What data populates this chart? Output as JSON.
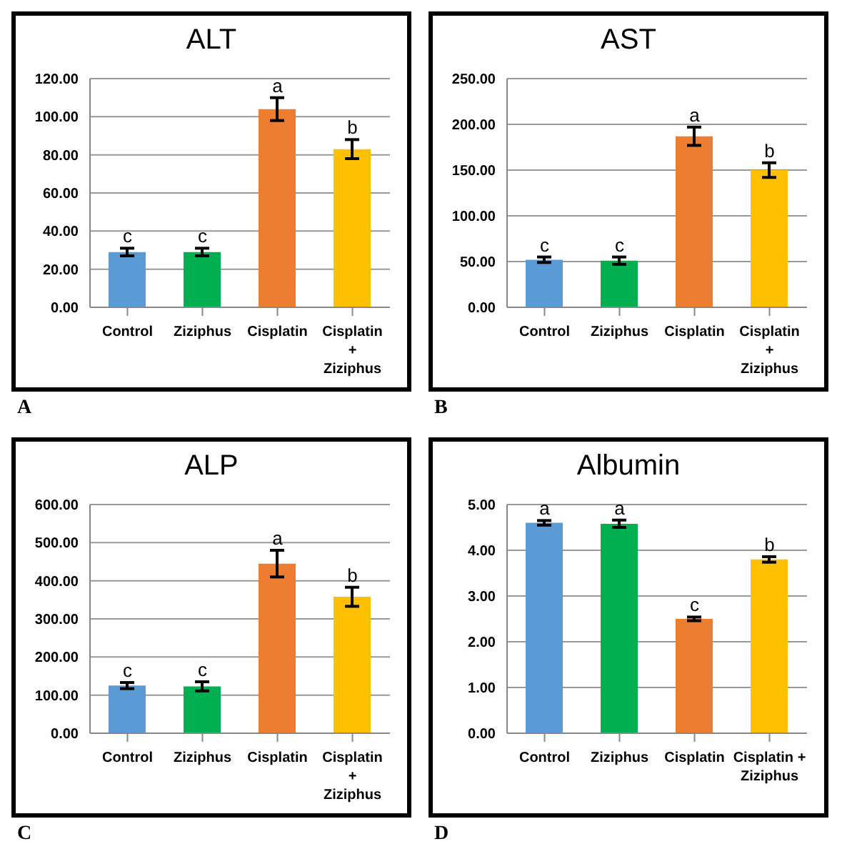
{
  "chart_data": [
    {
      "type": "bar",
      "title": "ALT",
      "categories": [
        "Control",
        "Ziziphus",
        "Cisplatin",
        "Cisplatin + Ziziphus"
      ],
      "values": [
        29,
        29,
        104,
        83
      ],
      "errors": [
        2,
        2,
        6,
        5
      ],
      "colors": [
        "#5b9bd5",
        "#00b050",
        "#ed7d31",
        "#ffc000"
      ],
      "ylim": [
        0,
        120
      ],
      "yticks": [
        {
          "value": 0,
          "label": "0.00"
        },
        {
          "value": 20,
          "label": "20.00"
        },
        {
          "value": 40,
          "label": "40.00"
        },
        {
          "value": 60,
          "label": "60.00"
        },
        {
          "value": 80,
          "label": "80.00"
        },
        {
          "value": 100,
          "label": "100.00"
        },
        {
          "value": 120,
          "label": "120.00"
        }
      ],
      "grid": "y",
      "annotations": [
        {
          "text": "c",
          "x": "Control",
          "y": 29
        },
        {
          "text": "c",
          "x": "Ziziphus",
          "y": 29
        },
        {
          "text": "a",
          "x": "Cisplatin",
          "y": 104
        },
        {
          "text": "b",
          "x": "Cisplatin + Ziziphus",
          "y": 83
        },
        "A"
      ]
    },
    {
      "type": "bar",
      "title": "AST",
      "categories": [
        "Control",
        "Ziziphus",
        "Cisplatin",
        "Cisplatin + Ziziphus"
      ],
      "values": [
        52,
        51,
        187,
        150
      ],
      "errors": [
        3,
        4,
        10,
        8
      ],
      "colors": [
        "#5b9bd5",
        "#00b050",
        "#ed7d31",
        "#ffc000"
      ],
      "ylim": [
        0,
        250
      ],
      "yticks": [
        {
          "value": 0,
          "label": "0.00"
        },
        {
          "value": 50,
          "label": "50.00"
        },
        {
          "value": 100,
          "label": "100.00"
        },
        {
          "value": 150,
          "label": "150.00"
        },
        {
          "value": 200,
          "label": "200.00"
        },
        {
          "value": 250,
          "label": "250.00"
        }
      ],
      "grid": "y",
      "annotations": [
        {
          "text": "c",
          "x": "Control",
          "y": 52
        },
        {
          "text": "c",
          "x": "Ziziphus",
          "y": 51
        },
        {
          "text": "a",
          "x": "Cisplatin",
          "y": 187
        },
        {
          "text": "b",
          "x": "Cisplatin + Ziziphus",
          "y": 150
        },
        "B"
      ]
    },
    {
      "type": "bar",
      "title": "ALP",
      "categories": [
        "Control",
        "Ziziphus",
        "Cisplatin",
        "Cisplatin + Ziziphus"
      ],
      "values": [
        125,
        123,
        445,
        358
      ],
      "errors": [
        8,
        12,
        35,
        25
      ],
      "colors": [
        "#5b9bd5",
        "#00b050",
        "#ed7d31",
        "#ffc000"
      ],
      "ylim": [
        0,
        600
      ],
      "yticks": [
        {
          "value": 0,
          "label": "0.00"
        },
        {
          "value": 100,
          "label": "100.00"
        },
        {
          "value": 200,
          "label": "200.00"
        },
        {
          "value": 300,
          "label": "300.00"
        },
        {
          "value": 400,
          "label": "400.00"
        },
        {
          "value": 500,
          "label": "500.00"
        },
        {
          "value": 600,
          "label": "600.00"
        }
      ],
      "grid": "y",
      "annotations": [
        {
          "text": "c",
          "x": "Control",
          "y": 125
        },
        {
          "text": "c",
          "x": "Ziziphus",
          "y": 123
        },
        {
          "text": "a",
          "x": "Cisplatin",
          "y": 445
        },
        {
          "text": "b",
          "x": "Cisplatin + Ziziphus",
          "y": 358
        },
        "C"
      ]
    },
    {
      "type": "bar",
      "title": "Albumin",
      "categories": [
        "Control",
        "Ziziphus",
        "Cisplatin",
        "Cisplatin + Ziziphus"
      ],
      "values": [
        4.6,
        4.58,
        2.5,
        3.8
      ],
      "errors": [
        0.05,
        0.08,
        0.04,
        0.06
      ],
      "colors": [
        "#5b9bd5",
        "#00b050",
        "#ed7d31",
        "#ffc000"
      ],
      "ylim": [
        0,
        5
      ],
      "yticks": [
        {
          "value": 0,
          "label": "0.00"
        },
        {
          "value": 1,
          "label": "1.00"
        },
        {
          "value": 2,
          "label": "2.00"
        },
        {
          "value": 3,
          "label": "3.00"
        },
        {
          "value": 4,
          "label": "4.00"
        },
        {
          "value": 5,
          "label": "5.00"
        }
      ],
      "grid": "y",
      "annotations": [
        {
          "text": "a",
          "x": "Control",
          "y": 4.6
        },
        {
          "text": "a",
          "x": "Ziziphus",
          "y": 4.58
        },
        {
          "text": "c",
          "x": "Cisplatin",
          "y": 2.5
        },
        {
          "text": "b",
          "x": "Cisplatin + Ziziphus",
          "y": 3.8
        },
        "D"
      ]
    }
  ]
}
